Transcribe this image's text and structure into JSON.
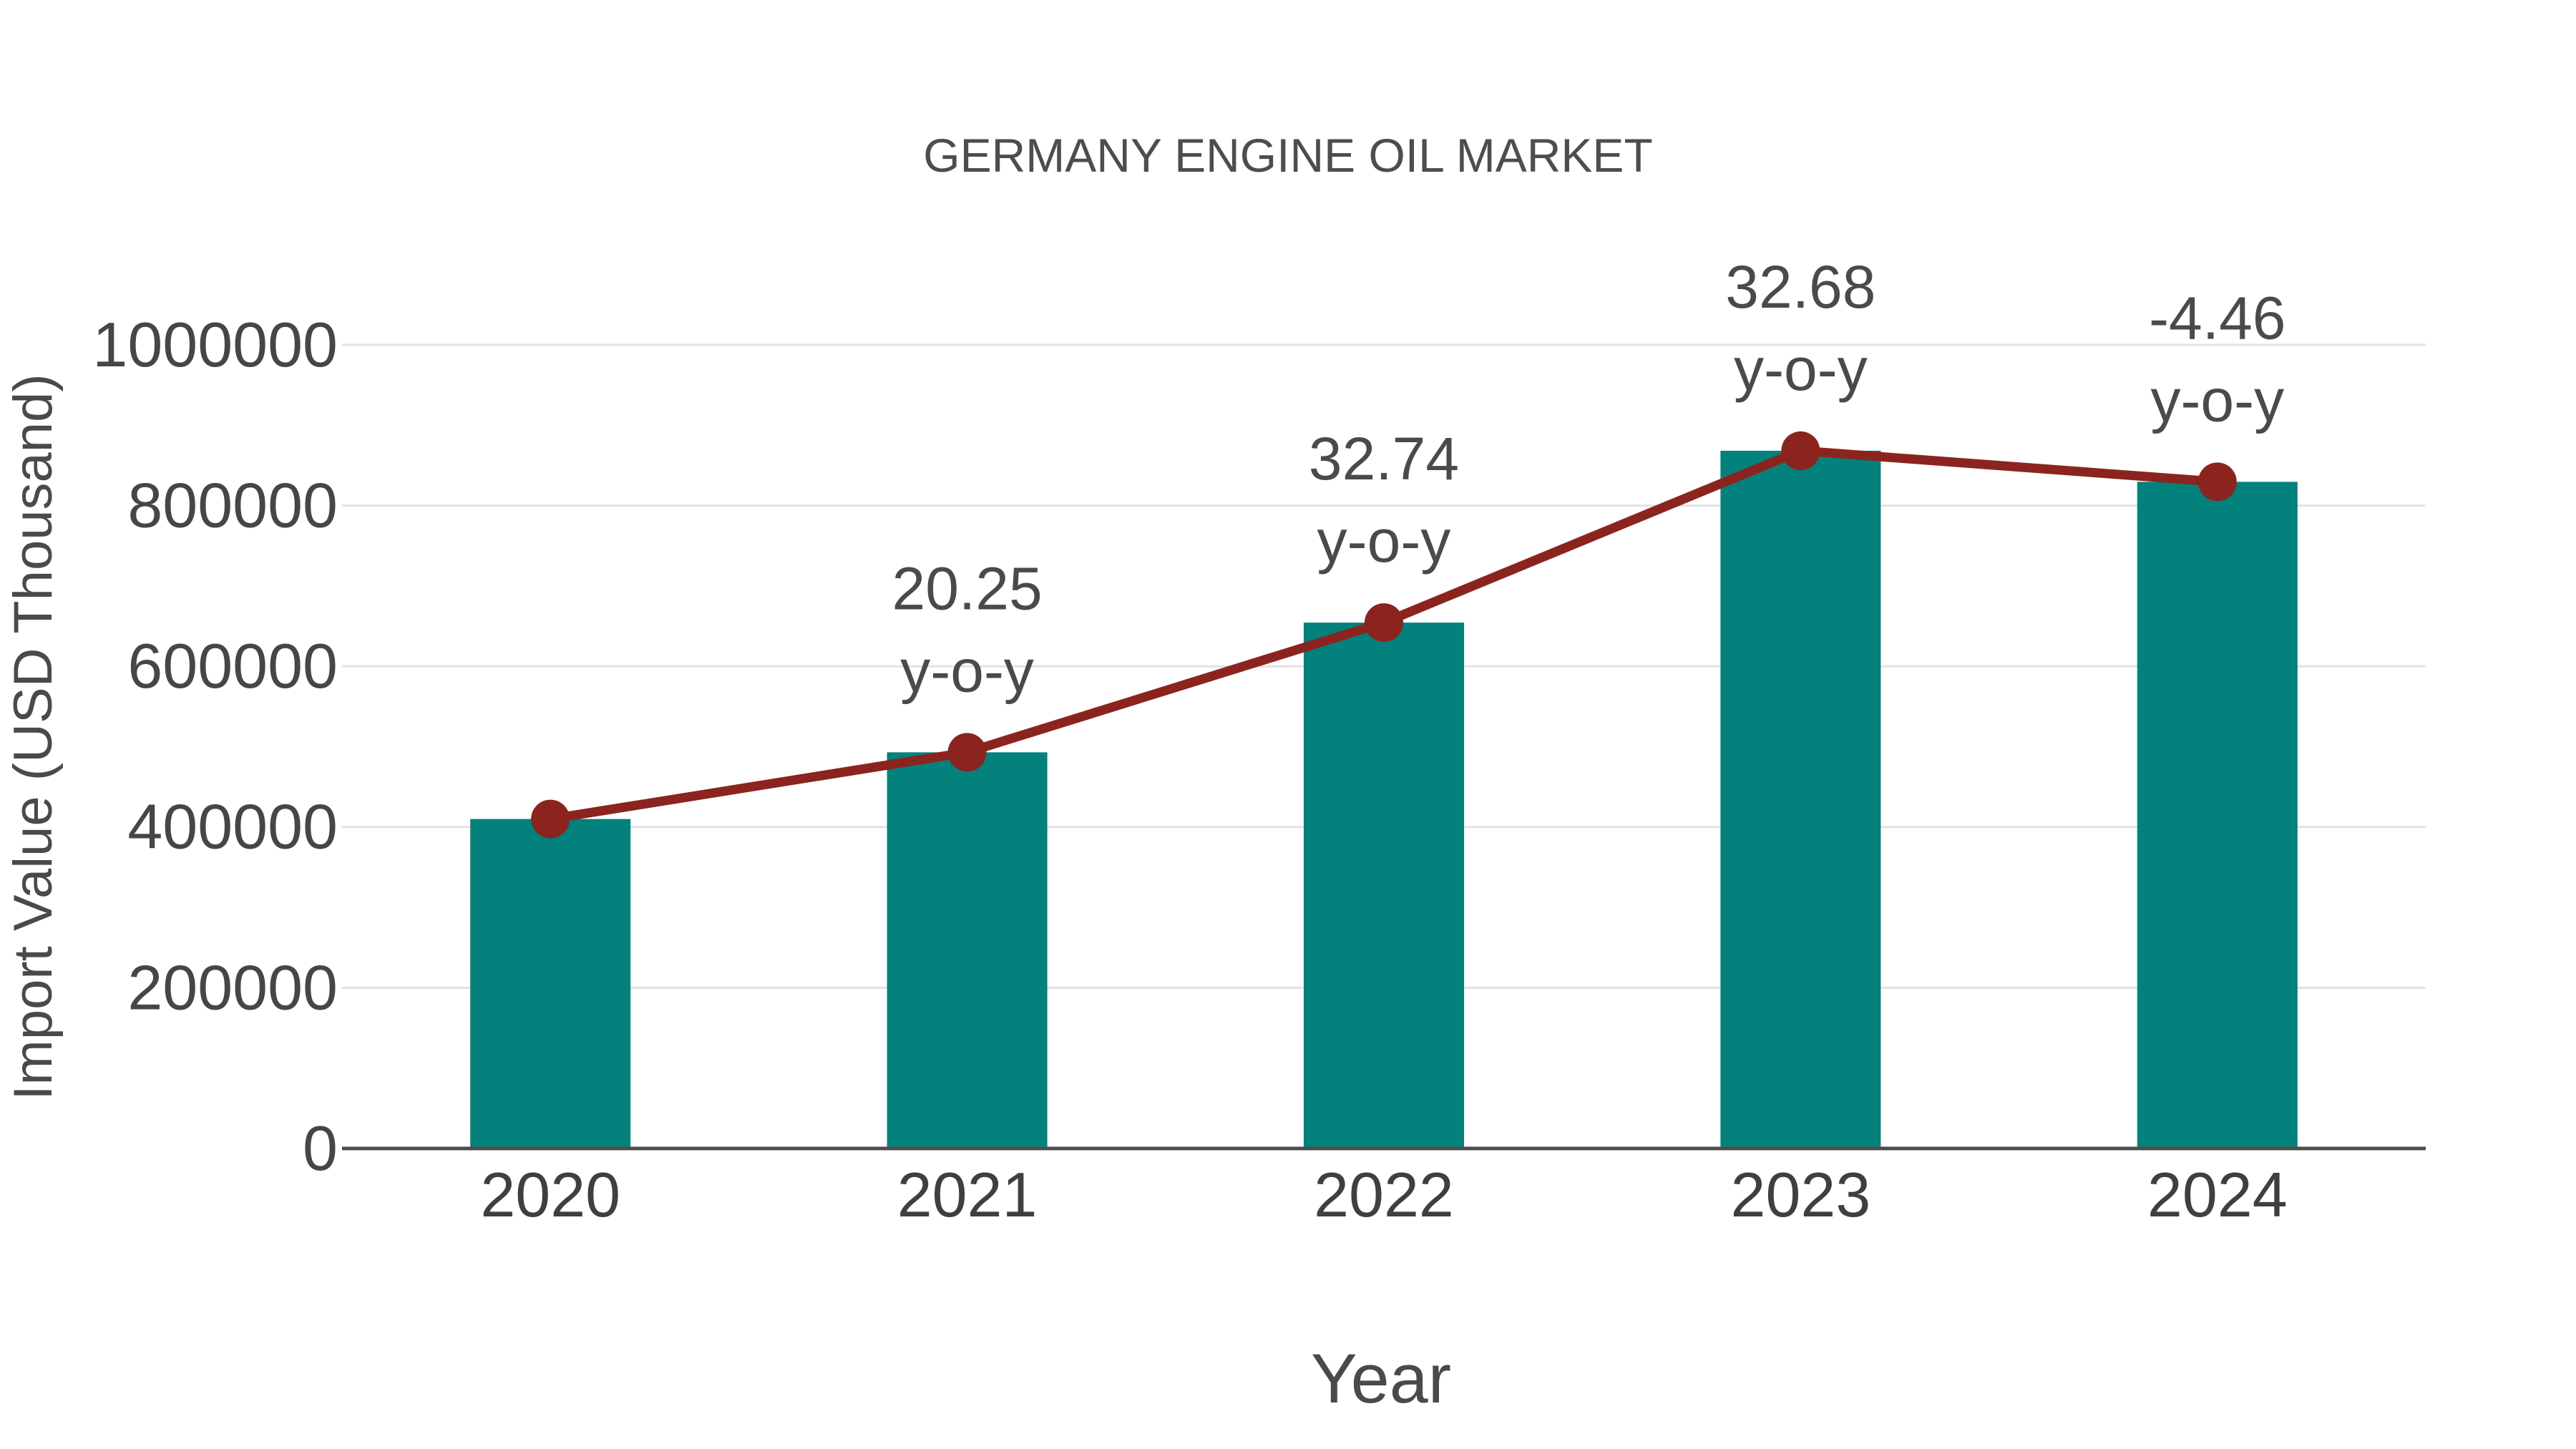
{
  "chart_data": {
    "type": "bar",
    "title": "GERMANY ENGINE OIL MARKET",
    "xlabel": "Year",
    "ylabel": "Import Value (USD Thousand)",
    "categories": [
      "2020",
      "2021",
      "2022",
      "2023",
      "2024"
    ],
    "series": [
      {
        "name": "import-value-bars",
        "type": "bar",
        "values": [
          410000,
          493000,
          654400,
          868300,
          829600
        ]
      },
      {
        "name": "import-value-trend-line",
        "type": "line",
        "values": [
          410000,
          493000,
          654400,
          868300,
          829600
        ]
      }
    ],
    "annotations": [
      {
        "category": "2021",
        "line1": "20.25",
        "line2": "y-o-y"
      },
      {
        "category": "2022",
        "line1": "32.74",
        "line2": "y-o-y"
      },
      {
        "category": "2023",
        "line1": "32.68",
        "line2": "y-o-y"
      },
      {
        "category": "2024",
        "line1": "-4.46",
        "line2": "y-o-y"
      }
    ],
    "yticks": [
      "0",
      "200000",
      "400000",
      "600000",
      "800000",
      "1000000"
    ],
    "ylim": [
      0,
      1000000
    ],
    "grid": true,
    "legend": false,
    "colors": {
      "bar": "#02817d",
      "line": "#8b231f",
      "grid": "#e2e2e2",
      "axis": "#4d4d4d",
      "text": "#4a4a4a",
      "background": "#ffffff"
    }
  }
}
